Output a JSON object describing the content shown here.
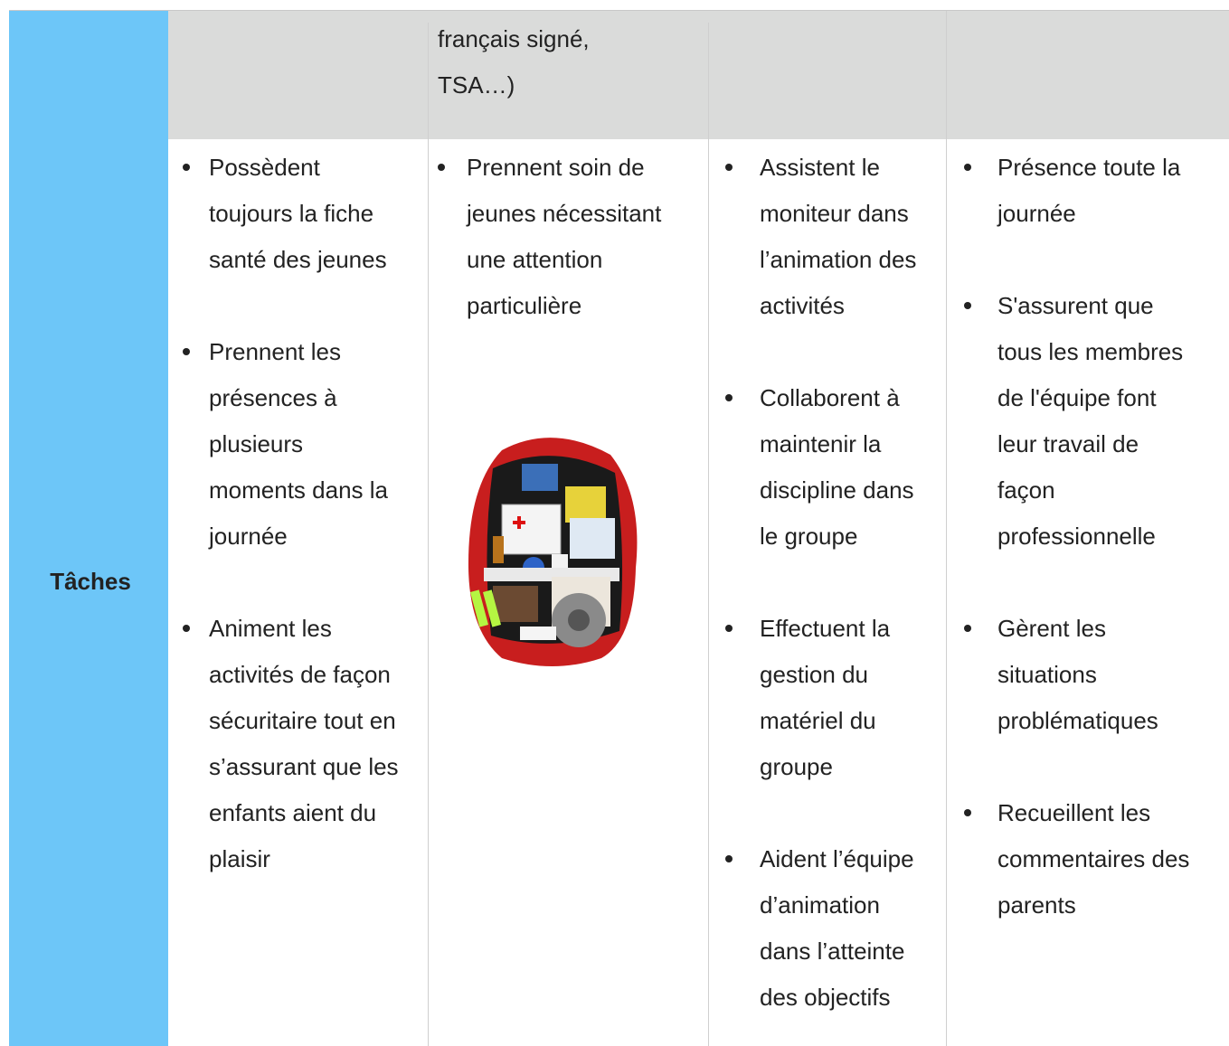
{
  "top_row": {
    "column_2": [
      "français signé,",
      "TSA…)"
    ]
  },
  "tasks_row": {
    "label": "Tâches",
    "columns": [
      [
        [
          "Possèdent",
          "toujours la fiche",
          "santé des jeunes"
        ],
        [
          "Prennent les",
          "présences à",
          "plusieurs",
          "moments dans la",
          "journée"
        ],
        [
          "Animent les",
          "activités de façon",
          "sécuritaire tout en",
          "s’assurant que les",
          "enfants aient du",
          "plaisir"
        ]
      ],
      [
        [
          "Prennent soin de",
          "jeunes nécessitant",
          "une attention",
          "particulière"
        ]
      ],
      [
        [
          "Assistent le",
          "moniteur dans",
          "l’animation des",
          "activités"
        ],
        [
          "Collaborent à",
          "maintenir la",
          "discipline dans",
          "le groupe"
        ],
        [
          "Effectuent la",
          "gestion du",
          "matériel du",
          "groupe"
        ],
        [
          "Aident l’équipe",
          "d’animation",
          "dans l’atteinte",
          "des objectifs"
        ]
      ],
      [
        [
          "Présence toute la",
          "journée"
        ],
        [
          "S'assurent que",
          "tous les membres",
          "de l'équipe font",
          "leur travail de",
          "façon",
          "professionnelle"
        ],
        [
          "Gèrent les",
          "situations",
          "problématiques"
        ],
        [
          "Recueillent les",
          "commentaires des",
          "parents"
        ]
      ]
    ]
  }
}
